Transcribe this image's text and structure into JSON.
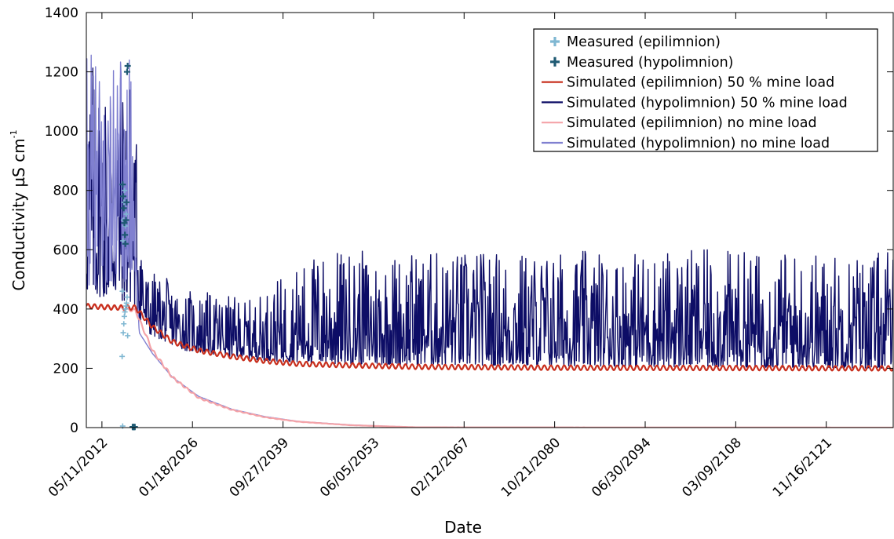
{
  "chart_data": {
    "type": "line",
    "title": "",
    "xlabel": "Date",
    "ylabel": "Conductivity µS cm",
    "ylabel_superscript": "-1",
    "ylim": [
      0,
      1400
    ],
    "yticks": [
      0,
      200,
      400,
      600,
      800,
      1000,
      1200,
      1400
    ],
    "xlim": [
      "2010-01-01",
      "2131-12-31"
    ],
    "xticks": [
      "05/11/2012",
      "01/18/2026",
      "09/27/2039",
      "06/05/2053",
      "02/12/2067",
      "10/21/2080",
      "06/30/2094",
      "03/09/2108",
      "11/16/2121"
    ],
    "grid": false,
    "legend_position": "top-right",
    "series": [
      {
        "name": "Measured (epilimnion)",
        "kind": "marker",
        "color": "#7fb7d2",
        "points": [
          {
            "x": "2015-06-01",
            "y": 240
          },
          {
            "x": "2015-07-01",
            "y": 5
          },
          {
            "x": "2015-08-01",
            "y": 320
          },
          {
            "x": "2015-09-01",
            "y": 350
          },
          {
            "x": "2015-10-01",
            "y": 375
          },
          {
            "x": "2015-11-01",
            "y": 390
          },
          {
            "x": "2015-12-01",
            "y": 400
          },
          {
            "x": "2016-01-01",
            "y": 410
          },
          {
            "x": "2016-02-01",
            "y": 420
          },
          {
            "x": "2016-03-01",
            "y": 440
          },
          {
            "x": "2015-06-15",
            "y": 460
          },
          {
            "x": "2016-04-01",
            "y": 310
          },
          {
            "x": "2015-07-15",
            "y": 630
          },
          {
            "x": "2015-08-15",
            "y": 700
          },
          {
            "x": "2015-09-15",
            "y": 760
          },
          {
            "x": "2015-10-15",
            "y": 800
          },
          {
            "x": "2015-11-15",
            "y": 680
          },
          {
            "x": "2015-12-15",
            "y": 620
          },
          {
            "x": "2016-01-15",
            "y": 720
          }
        ]
      },
      {
        "name": "Measured (hypolimnion)",
        "kind": "marker",
        "color": "#1f5a73",
        "points": [
          {
            "x": "2015-07-01",
            "y": 820
          },
          {
            "x": "2015-08-01",
            "y": 780
          },
          {
            "x": "2015-09-01",
            "y": 740
          },
          {
            "x": "2015-10-01",
            "y": 690
          },
          {
            "x": "2015-11-01",
            "y": 650
          },
          {
            "x": "2015-12-01",
            "y": 620
          },
          {
            "x": "2016-01-01",
            "y": 700
          },
          {
            "x": "2016-02-01",
            "y": 760
          },
          {
            "x": "2016-03-01",
            "y": 1200
          },
          {
            "x": "2016-04-01",
            "y": 1220
          },
          {
            "x": "2017-01-01",
            "y": 2
          },
          {
            "x": "2017-02-01",
            "y": 2
          },
          {
            "x": "2017-03-01",
            "y": 2
          },
          {
            "x": "2017-04-01",
            "y": 2
          },
          {
            "x": "2017-05-01",
            "y": 2
          }
        ]
      },
      {
        "name": "Simulated (epilimnion) 50 % mine load",
        "kind": "line",
        "color": "#c8301e",
        "baseline": [
          {
            "x": "2010-01-01",
            "y": 410
          },
          {
            "x": "2014-01-01",
            "y": 405
          },
          {
            "x": "2017-06-01",
            "y": 405
          },
          {
            "x": "2020-01-01",
            "y": 340
          },
          {
            "x": "2023-01-01",
            "y": 290
          },
          {
            "x": "2027-01-01",
            "y": 260
          },
          {
            "x": "2032-01-01",
            "y": 240
          },
          {
            "x": "2037-01-01",
            "y": 225
          },
          {
            "x": "2042-01-01",
            "y": 215
          },
          {
            "x": "2050-01-01",
            "y": 210
          },
          {
            "x": "2060-01-01",
            "y": 205
          },
          {
            "x": "2080-01-01",
            "y": 202
          },
          {
            "x": "2131-12-31",
            "y": 200
          }
        ],
        "seasonal_amplitude": 8
      },
      {
        "name": "Simulated (hypolimnion) 50 % mine load",
        "kind": "line",
        "color": "#0d0d66",
        "baseline_range": [
          {
            "x": "2010-01-01",
            "low": 450,
            "high": 1270
          },
          {
            "x": "2017-01-01",
            "low": 420,
            "high": 1220
          },
          {
            "x": "2019-01-01",
            "low": 320,
            "high": 540
          },
          {
            "x": "2025-01-01",
            "low": 260,
            "high": 470
          },
          {
            "x": "2035-01-01",
            "low": 230,
            "high": 430
          },
          {
            "x": "2045-01-01",
            "low": 215,
            "high": 600
          },
          {
            "x": "2131-12-31",
            "low": 200,
            "high": 600
          }
        ]
      },
      {
        "name": "Simulated (epilimnion) no mine load",
        "kind": "line",
        "color": "#f4a3a8",
        "baseline": [
          {
            "x": "2010-01-01",
            "y": 410
          },
          {
            "x": "2014-01-01",
            "y": 405
          },
          {
            "x": "2017-06-01",
            "y": 395
          },
          {
            "x": "2020-01-01",
            "y": 260
          },
          {
            "x": "2023-01-01",
            "y": 170
          },
          {
            "x": "2027-01-01",
            "y": 100
          },
          {
            "x": "2032-01-01",
            "y": 60
          },
          {
            "x": "2037-01-01",
            "y": 35
          },
          {
            "x": "2042-01-01",
            "y": 20
          },
          {
            "x": "2050-01-01",
            "y": 8
          },
          {
            "x": "2060-01-01",
            "y": 1
          },
          {
            "x": "2131-12-31",
            "y": 0
          }
        ],
        "seasonal_amplitude": 5
      },
      {
        "name": "Simulated (hypolimnion) no mine load",
        "kind": "line",
        "color": "#8080d0",
        "baseline": [
          {
            "x": "2010-01-01",
            "y": 600
          },
          {
            "x": "2017-06-01",
            "y": 600
          },
          {
            "x": "2018-01-01",
            "y": 320
          },
          {
            "x": "2020-01-01",
            "y": 250
          },
          {
            "x": "2023-01-01",
            "y": 170
          },
          {
            "x": "2027-01-01",
            "y": 105
          },
          {
            "x": "2032-01-01",
            "y": 62
          },
          {
            "x": "2037-01-01",
            "y": 37
          },
          {
            "x": "2042-01-01",
            "y": 21
          },
          {
            "x": "2050-01-01",
            "y": 9
          },
          {
            "x": "2060-01-01",
            "y": 1
          },
          {
            "x": "2131-12-31",
            "y": 0
          }
        ]
      }
    ]
  }
}
